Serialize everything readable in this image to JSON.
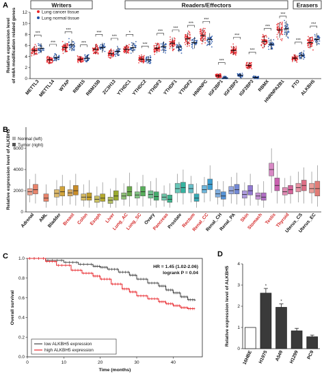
{
  "chart_data": [
    {
      "panel": "A",
      "type": "scatter",
      "ylabel": "Relative expression level\nof m6A modification related genes",
      "ylim": [
        0,
        12
      ],
      "yticks": [
        0,
        2,
        4,
        6,
        8,
        10,
        12
      ],
      "groups": [
        {
          "name": "Writers",
          "genes": [
            "METTL3",
            "METTL14",
            "WTAP",
            "RBM15",
            "RBM15B",
            "ZC3H13"
          ]
        },
        {
          "name": "Readers/Effectors",
          "genes": [
            "YTHDC1",
            "YTHDC2",
            "YTHDF1",
            "YTHDF2",
            "YTHDF3",
            "HNRNPC",
            "IGF2BP1",
            "IGF2BP2",
            "IGF2BP3",
            "RBMX",
            "HNRNPA2B1"
          ]
        },
        {
          "name": "Erasers",
          "genes": [
            "FTO",
            "ALKBH5"
          ]
        }
      ],
      "categories": [
        "METTL3",
        "METTL14",
        "WTAP",
        "RBM15",
        "RBM15B",
        "ZC3H13",
        "YTHDC1",
        "YTHDC2",
        "YTHDF3",
        "YTHDF1",
        "YTHDF2",
        "HNRNPC",
        "IGF2BP1",
        "IGF2BP2",
        "IGF2BP3",
        "RBMX",
        "HNRNPA2B1",
        "FTO",
        "ALKBH5"
      ],
      "significance": [
        "***",
        "***",
        "***",
        "***",
        "***",
        "***",
        "*",
        "***",
        "***",
        "***",
        "***",
        "***",
        "***",
        "***",
        "***",
        "***",
        "***",
        "***",
        "***"
      ],
      "series": [
        {
          "name": "Lung cancer tissue",
          "color": "#e8262b",
          "values": [
            5.1,
            3.4,
            5.6,
            3.5,
            5.3,
            4.5,
            5.3,
            3.5,
            5.5,
            6.4,
            7.2,
            7.8,
            0.5,
            5.1,
            2.4,
            6.7,
            8.8,
            3.7,
            6.5
          ]
        },
        {
          "name": "Lung normal tissue",
          "color": "#1f4fa3",
          "values": [
            5.5,
            3.8,
            6.1,
            3.7,
            5.6,
            4.9,
            5.6,
            3.4,
            5.8,
            5.7,
            6.5,
            7.1,
            0.1,
            0.6,
            0.2,
            6.2,
            9.0,
            4.2,
            7.1
          ]
        }
      ]
    },
    {
      "panel": "B",
      "type": "box",
      "ylabel": "Relative expression level of ALKBH5",
      "ylim": [
        0,
        8000
      ],
      "yticks": [
        0,
        2000,
        4000,
        6000
      ],
      "legend": [
        "Normal (left)",
        "Tumor (right)"
      ],
      "legend_colors": [
        "#b0b0b0",
        "#555555"
      ],
      "categories": [
        "Adrenal",
        "AML",
        "Bladder",
        "Breast",
        "Colon",
        "Esoph",
        "Liver",
        "Lung_AC",
        "Lung_SC",
        "Ovary",
        "Pancreas",
        "Prostate",
        "Rectum",
        "Renal_CC",
        "Renal_CH",
        "Renal_PA",
        "Skin",
        "Stomach",
        "Testis",
        "Thyroid",
        "Uterus_CS",
        "Uterus_EC"
      ],
      "label_colors": [
        "#111111",
        "#111111",
        "#111111",
        "#d42a2a",
        "#d42a2a",
        "#d42a2a",
        "#d42a2a",
        "#d42a2a",
        "#d42a2a",
        "#111111",
        "#d42a2a",
        "#111111",
        "#d42a2a",
        "#d42a2a",
        "#111111",
        "#111111",
        "#d42a2a",
        "#d42a2a",
        "#d42a2a",
        "#d42a2a",
        "#111111",
        "#111111"
      ],
      "box_colors": [
        "#e8836a",
        "#e8836a",
        "#d1a33a",
        "#c98d28",
        "#c4a02c",
        "#b5aa2e",
        "#9aaa2f",
        "#6aa94b",
        "#57ae5a",
        "#45ac6c",
        "#3eb08a",
        "#36b3a0",
        "#36a9b5",
        "#3e9fd1",
        "#5794d6",
        "#7389d5",
        "#927ad2",
        "#b06cc4",
        "#c960b0",
        "#d5649b",
        "#de6f86",
        "#e27c76"
      ],
      "normal": [
        {
          "q1": 1600,
          "med": 1900,
          "q3": 2200,
          "lo": 900,
          "hi": 3100
        },
        null,
        {
          "q1": 1400,
          "med": 1750,
          "q3": 2100,
          "lo": 600,
          "hi": 3000
        },
        {
          "q1": 1500,
          "med": 1800,
          "q3": 2100,
          "lo": 700,
          "hi": 3000
        },
        {
          "q1": 1100,
          "med": 1400,
          "q3": 1700,
          "lo": 500,
          "hi": 2600
        },
        {
          "q1": 900,
          "med": 1200,
          "q3": 1500,
          "lo": 400,
          "hi": 2400
        },
        {
          "q1": 800,
          "med": 1100,
          "q3": 1400,
          "lo": 400,
          "hi": 2200
        },
        {
          "q1": 1200,
          "med": 1500,
          "q3": 1800,
          "lo": 600,
          "hi": 2700
        },
        {
          "q1": 1300,
          "med": 1600,
          "q3": 1900,
          "lo": 600,
          "hi": 2800
        },
        {
          "q1": 1300,
          "med": 1650,
          "q3": 2000,
          "lo": 600,
          "hi": 2900
        },
        {
          "q1": 1100,
          "med": 1400,
          "q3": 1700,
          "lo": 500,
          "hi": 2500
        },
        {
          "q1": 1800,
          "med": 2200,
          "q3": 2700,
          "lo": 900,
          "hi": 3600
        },
        {
          "q1": 1800,
          "med": 2200,
          "q3": 2600,
          "lo": 900,
          "hi": 3400
        },
        {
          "q1": 1800,
          "med": 2100,
          "q3": 2500,
          "lo": 900,
          "hi": 3300
        },
        {
          "q1": 1400,
          "med": 1700,
          "q3": 2100,
          "lo": 700,
          "hi": 2900
        },
        {
          "q1": 1700,
          "med": 2000,
          "q3": 2400,
          "lo": 800,
          "hi": 3300
        },
        {
          "q1": 1300,
          "med": 1650,
          "q3": 2000,
          "lo": 600,
          "hi": 2800
        },
        {
          "q1": 1200,
          "med": 1500,
          "q3": 1800,
          "lo": 600,
          "hi": 2600
        },
        {
          "q1": 3400,
          "med": 4000,
          "q3": 4600,
          "lo": 1800,
          "hi": 6000
        },
        {
          "q1": 1600,
          "med": 1900,
          "q3": 2300,
          "lo": 800,
          "hi": 3200
        },
        {
          "q1": 1900,
          "med": 2300,
          "q3": 2700,
          "lo": 900,
          "hi": 3800
        },
        {
          "q1": 1800,
          "med": 2200,
          "q3": 2700,
          "lo": 800,
          "hi": 3800
        }
      ],
      "tumor": [
        {
          "q1": 1700,
          "med": 2100,
          "q3": 2600,
          "lo": 800,
          "hi": 3600
        },
        {
          "q1": 1000,
          "med": 1300,
          "q3": 1700,
          "lo": 400,
          "hi": 2600
        },
        {
          "q1": 1500,
          "med": 1900,
          "q3": 2400,
          "lo": 600,
          "hi": 3500
        },
        {
          "q1": 1600,
          "med": 2000,
          "q3": 2500,
          "lo": 600,
          "hi": 3600
        },
        {
          "q1": 1100,
          "med": 1400,
          "q3": 1800,
          "lo": 400,
          "hi": 3000
        },
        {
          "q1": 1000,
          "med": 1300,
          "q3": 1700,
          "lo": 400,
          "hi": 2800
        },
        {
          "q1": 1100,
          "med": 1500,
          "q3": 2000,
          "lo": 400,
          "hi": 3200
        },
        {
          "q1": 1500,
          "med": 1900,
          "q3": 2400,
          "lo": 500,
          "hi": 3700
        },
        {
          "q1": 1500,
          "med": 1900,
          "q3": 2400,
          "lo": 500,
          "hi": 3500
        },
        {
          "q1": 1100,
          "med": 1450,
          "q3": 1900,
          "lo": 400,
          "hi": 3200
        },
        {
          "q1": 900,
          "med": 1200,
          "q3": 1600,
          "lo": 400,
          "hi": 2700
        },
        {
          "q1": 1800,
          "med": 2300,
          "q3": 2800,
          "lo": 700,
          "hi": 4000
        },
        {
          "q1": 1000,
          "med": 1300,
          "q3": 1700,
          "lo": 400,
          "hi": 2700
        },
        {
          "q1": 2100,
          "med": 2600,
          "q3": 3100,
          "lo": 1000,
          "hi": 4400
        },
        {
          "q1": 1200,
          "med": 1500,
          "q3": 1900,
          "lo": 500,
          "hi": 2900
        },
        {
          "q1": 1700,
          "med": 2100,
          "q3": 2600,
          "lo": 700,
          "hi": 3700
        },
        {
          "q1": 1600,
          "med": 2000,
          "q3": 2500,
          "lo": 600,
          "hi": 3600
        },
        {
          "q1": 1100,
          "med": 1400,
          "q3": 1800,
          "lo": 400,
          "hi": 2900
        },
        {
          "q1": 2000,
          "med": 2500,
          "q3": 3200,
          "lo": 800,
          "hi": 4800
        },
        {
          "q1": 1700,
          "med": 2100,
          "q3": 2500,
          "lo": 800,
          "hi": 3400
        },
        {
          "q1": 2000,
          "med": 2500,
          "q3": 3000,
          "lo": 800,
          "hi": 4200
        },
        {
          "q1": 1500,
          "med": 2200,
          "q3": 2900,
          "lo": 500,
          "hi": 4400
        }
      ]
    },
    {
      "panel": "C",
      "type": "line",
      "xlabel": "Time (months)",
      "ylabel": "Overall survival",
      "xlim": [
        0,
        48
      ],
      "ylim": [
        0,
        1
      ],
      "xticks": [
        0,
        10,
        20,
        30,
        40
      ],
      "yticks": [
        0.0,
        0.2,
        0.4,
        0.6,
        0.8,
        1.0
      ],
      "annotation": [
        "HR = 1.45 (1.02-2.06)",
        "logrank P = 0.04"
      ],
      "series": [
        {
          "name": "low ALKBH5 expression",
          "color": "#444444",
          "x": [
            0,
            5,
            10,
            14,
            18,
            20,
            22,
            25,
            28,
            30,
            33,
            36,
            38,
            40,
            42,
            44,
            46
          ],
          "y": [
            1.0,
            0.98,
            0.96,
            0.94,
            0.92,
            0.91,
            0.89,
            0.86,
            0.83,
            0.79,
            0.75,
            0.72,
            0.68,
            0.65,
            0.61,
            0.58,
            0.57
          ]
        },
        {
          "name": "high ALKBH5 expression",
          "color": "#e8262b",
          "x": [
            0,
            5,
            8,
            12,
            15,
            18,
            20,
            23,
            26,
            28,
            30,
            33,
            36,
            38,
            40,
            42,
            44,
            46
          ],
          "y": [
            1.0,
            0.97,
            0.93,
            0.88,
            0.85,
            0.82,
            0.79,
            0.74,
            0.69,
            0.66,
            0.62,
            0.59,
            0.56,
            0.54,
            0.52,
            0.5,
            0.49,
            0.49
          ]
        }
      ]
    },
    {
      "panel": "D",
      "type": "bar",
      "ylabel": "Relative expression level of ALKBH5",
      "ylim": [
        0,
        4
      ],
      "yticks": [
        0,
        1,
        2,
        3,
        4
      ],
      "categories": [
        "16HBE",
        "H1975",
        "A549",
        "H1299",
        "PC9"
      ],
      "values": [
        1.0,
        2.62,
        1.95,
        0.84,
        0.56
      ],
      "errors": [
        0.0,
        0.22,
        0.16,
        0.12,
        0.08
      ],
      "significance": [
        "",
        "*",
        "*",
        "",
        ""
      ],
      "colors": [
        "#ffffff",
        "#3a3a3a",
        "#3a3a3a",
        "#3a3a3a",
        "#3a3a3a"
      ]
    }
  ]
}
